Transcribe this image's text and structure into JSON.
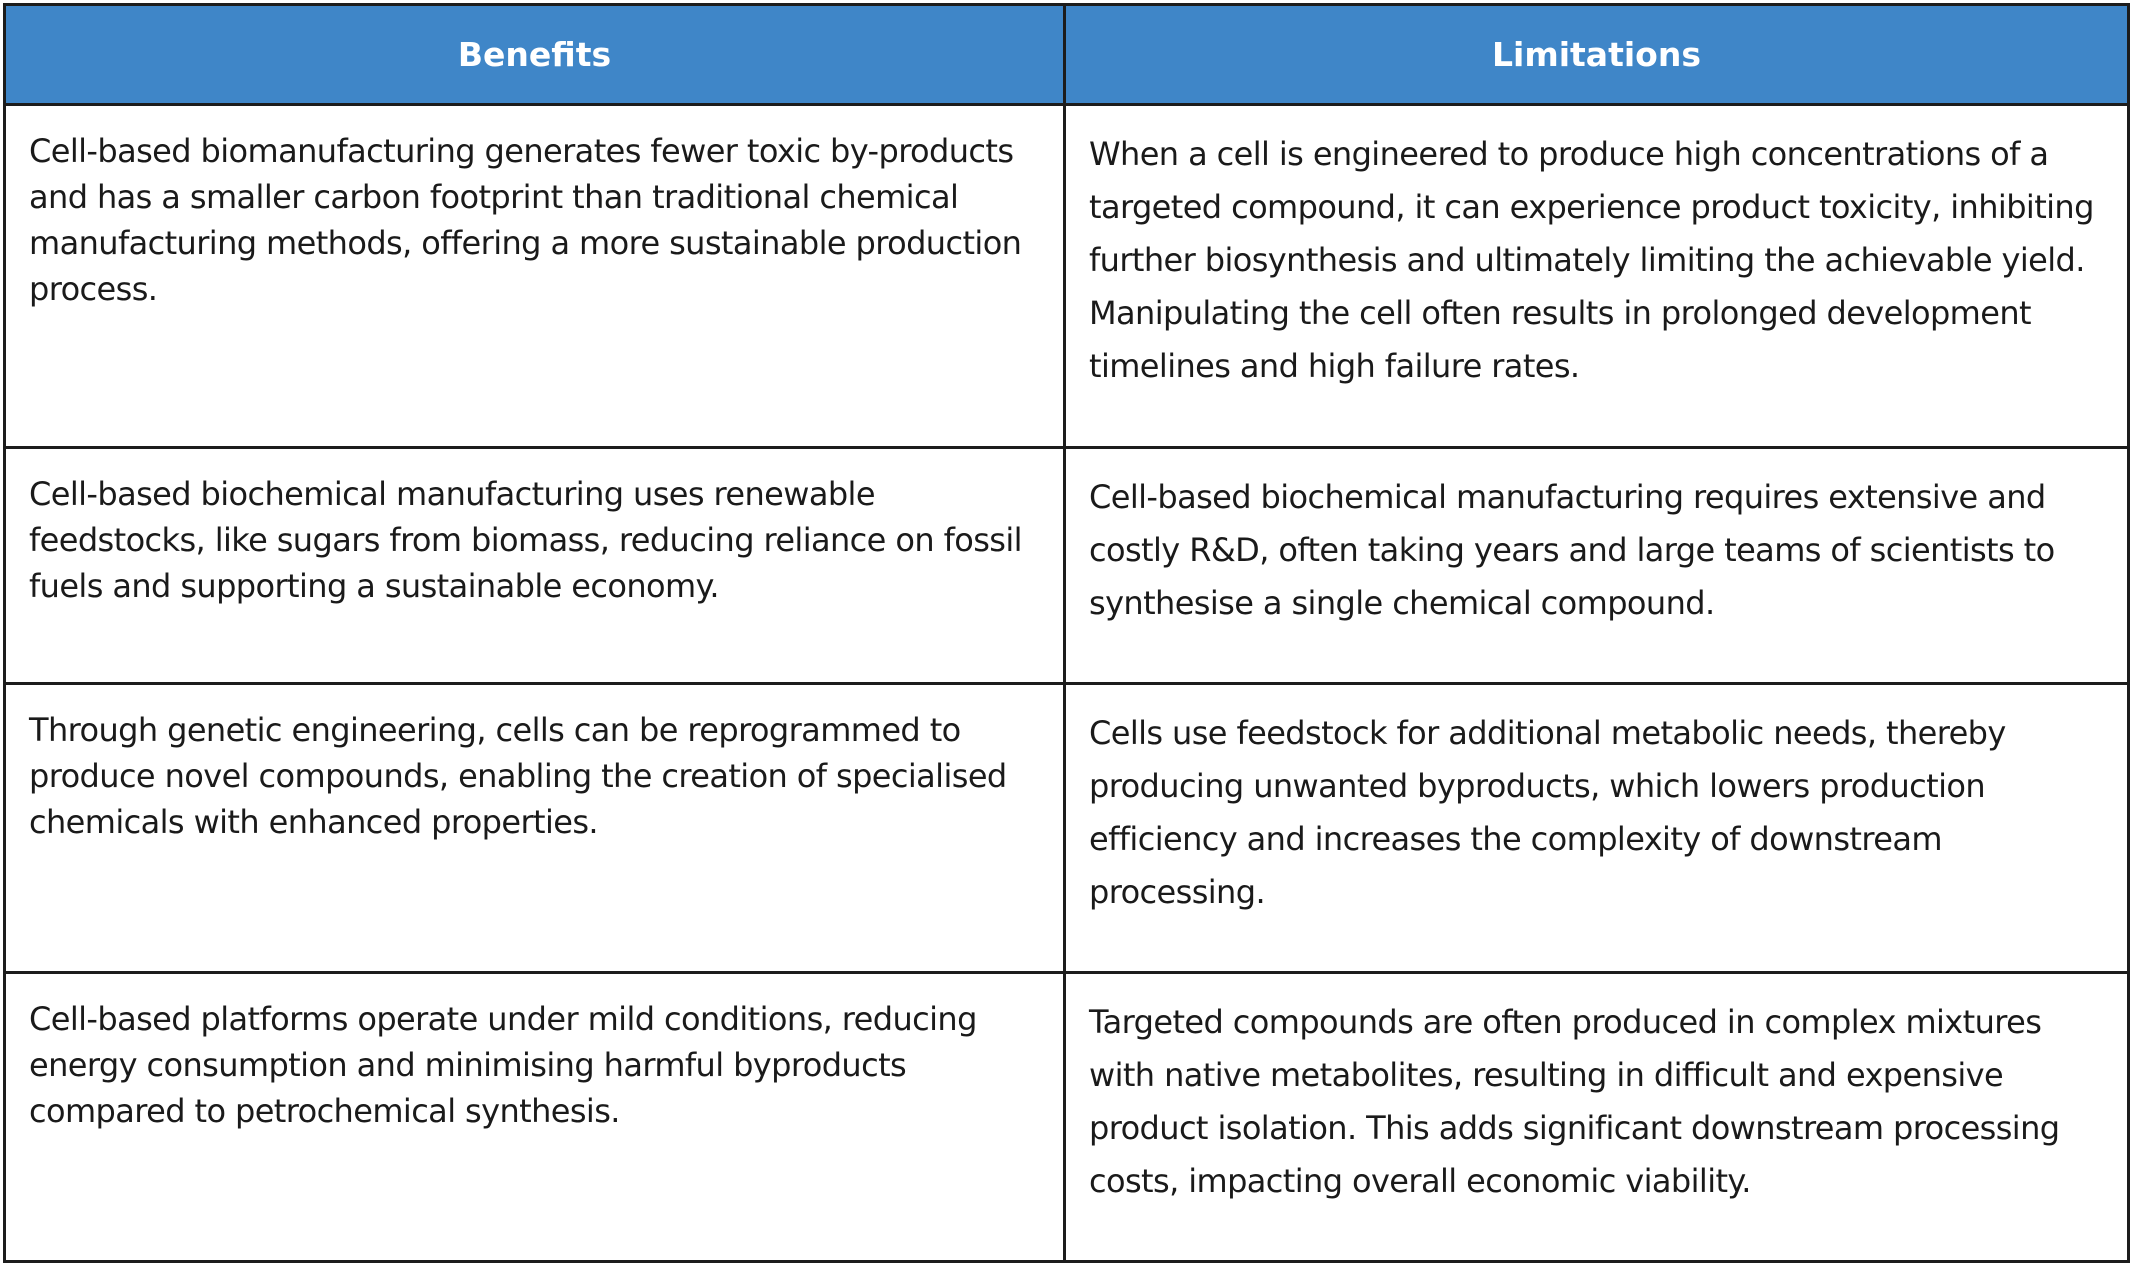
{
  "table": {
    "headers": {
      "benefits": "Benefits",
      "limitations": "Limitations"
    },
    "rows": [
      {
        "benefit": "Cell-based biomanufacturing generates fewer toxic by-products and has a smaller carbon footprint than traditional chemical manufacturing methods, offering a more sustainable production process.",
        "limitation": "When a cell is engineered to produce high concentrations of a targeted compound, it can experience product toxicity, inhibiting further biosynthesis and ultimately limiting the achievable yield. Manipulating the cell often results in prolonged development timelines and high failure rates."
      },
      {
        "benefit": "Cell-based biochemical manufacturing uses renewable feedstocks, like sugars from biomass, reducing reliance on fossil fuels and supporting a sustainable economy.",
        "limitation": "Cell-based biochemical manufacturing requires extensive and costly R&D, often taking years and large teams of scientists to synthesise a single chemical compound."
      },
      {
        "benefit": "Through genetic engineering, cells can be reprogrammed to produce novel compounds, enabling the creation of specialised chemicals with enhanced properties.",
        "limitation": "Cells use feedstock for additional metabolic needs, thereby producing unwanted byproducts, which lowers production efficiency and increases the complexity of downstream processing."
      },
      {
        "benefit": "Cell-based platforms operate under mild conditions, reducing energy consumption and minimising harmful byproducts compared to petrochemical synthesis.",
        "limitation": "Targeted compounds are often produced in complex mixtures with native metabolites, resulting in difficult and expensive product isolation. This adds significant downstream processing costs, impacting overall economic viability."
      }
    ]
  },
  "colors": {
    "header_background": "#3f86c8",
    "header_text": "#ffffff",
    "border": "#1c1c1c",
    "body_text": "#1a1a1a"
  }
}
